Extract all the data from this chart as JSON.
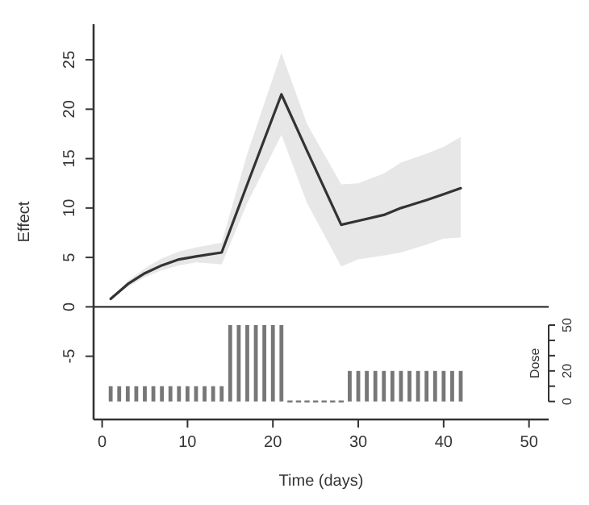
{
  "chart_data": {
    "type": "line",
    "xlabel": "Time (days)",
    "ylabel": "Effect",
    "y2label": "Dose",
    "xlim": [
      -1,
      52.3
    ],
    "xticks": [
      0,
      10,
      20,
      30,
      40,
      50
    ],
    "ylim": [
      -11.4,
      28.6
    ],
    "yticks": [
      -5,
      0,
      5,
      10,
      15,
      20,
      25
    ],
    "y2lim": [
      -11.8,
      247
    ],
    "y2ticks": [
      0,
      {
        "value": 10,
        "label": null
      },
      20,
      {
        "value": 30,
        "label": null
      },
      {
        "value": 40,
        "label": null
      },
      50
    ],
    "ref_lines": [
      {
        "axis": "y",
        "value": 0,
        "color": "#333333"
      }
    ],
    "series": [
      {
        "color": "#333333",
        "x": [
          1,
          3,
          5,
          7,
          9,
          11,
          14,
          17,
          21,
          24,
          28,
          30,
          33,
          35,
          38,
          40,
          42
        ],
        "values": [
          0.8,
          2.3,
          3.4,
          4.2,
          4.8,
          5.1,
          5.5,
          12.4,
          21.5,
          15.8,
          8.3,
          8.7,
          9.3,
          10.0,
          10.8,
          11.4,
          12.0
        ],
        "lower": [
          0.8,
          2.0,
          3.0,
          3.7,
          4.2,
          4.5,
          4.3,
          10.5,
          17.4,
          10.5,
          4.1,
          4.8,
          5.2,
          5.5,
          6.3,
          6.9,
          7.0
        ],
        "upper": [
          0.8,
          2.6,
          3.9,
          4.9,
          5.6,
          6.0,
          6.5,
          15.5,
          25.7,
          18.5,
          12.4,
          12.5,
          13.5,
          14.6,
          15.5,
          16.2,
          17.2
        ]
      },
      {
        "type": "bar",
        "axis": "y2",
        "color": "#777777",
        "x": [
          1,
          2,
          3,
          4,
          5,
          6,
          7,
          8,
          9,
          10,
          11,
          12,
          13,
          14,
          15,
          16,
          17,
          18,
          19,
          20,
          21,
          22,
          23,
          24,
          25,
          26,
          27,
          28,
          29,
          30,
          31,
          32,
          33,
          34,
          35,
          36,
          37,
          38,
          39,
          40,
          41,
          42
        ],
        "values": [
          10,
          10,
          10,
          10,
          10,
          10,
          10,
          10,
          10,
          10,
          10,
          10,
          10,
          10,
          50,
          50,
          50,
          50,
          50,
          50,
          50,
          0,
          0,
          0,
          0,
          0,
          0,
          0,
          20,
          20,
          20,
          20,
          20,
          20,
          20,
          20,
          20,
          20,
          20,
          20,
          20,
          20
        ]
      }
    ]
  }
}
